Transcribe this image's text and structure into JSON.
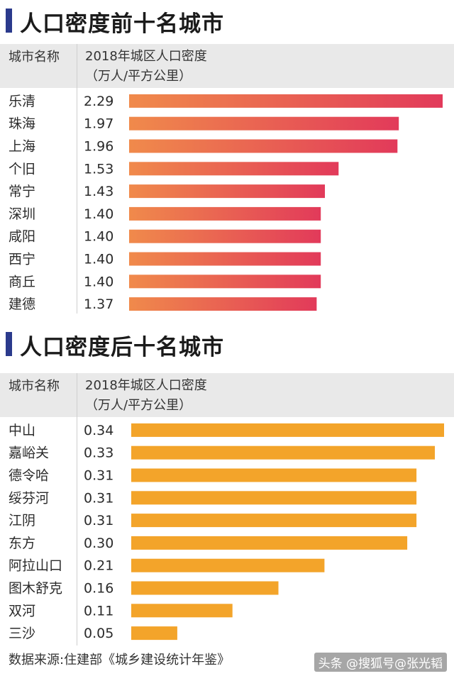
{
  "colors": {
    "title_marker": "#2b3a8c",
    "top_bar_start": "#f08a4b",
    "top_bar_end": "#e23a5a",
    "bottom_bar": "#f3a42a",
    "header_bg": "#e9e9e9"
  },
  "top": {
    "title": "人口密度前十名城市",
    "col_name": "城市名称",
    "col_value_line1": "2018年城区人口密度",
    "col_value_line2": "（万人/平方公里）"
  },
  "bottom": {
    "title": "人口密度后十名城市",
    "col_name": "城市名称",
    "col_value_line1": "2018年城区人口密度",
    "col_value_line2": "（万人/平方公里）"
  },
  "footer": {
    "source": "数据来源:住建部《城乡建设统计年鉴》",
    "credit": "头条 @搜狐号@张光韬"
  },
  "chart_data": [
    {
      "type": "bar",
      "title": "人口密度前十名城市",
      "ylabel": "2018年城区人口密度（万人/平方公里）",
      "categories": [
        "乐清",
        "珠海",
        "上海",
        "个旧",
        "常宁",
        "深圳",
        "咸阳",
        "西宁",
        "商丘",
        "建德"
      ],
      "values": [
        2.29,
        1.97,
        1.96,
        1.53,
        1.43,
        1.4,
        1.4,
        1.4,
        1.4,
        1.37
      ],
      "labels": [
        "2.29",
        "1.97",
        "1.96",
        "1.53",
        "1.43",
        "1.40",
        "1.40",
        "1.40",
        "1.40",
        "1.37"
      ],
      "orientation": "horizontal",
      "grid": false
    },
    {
      "type": "bar",
      "title": "人口密度后十名城市",
      "ylabel": "2018年城区人口密度（万人/平方公里）",
      "categories": [
        "中山",
        "嘉峪关",
        "德令哈",
        "绥芬河",
        "江阴",
        "东方",
        "阿拉山口",
        "图木舒克",
        "双河",
        "三沙"
      ],
      "values": [
        0.34,
        0.33,
        0.31,
        0.31,
        0.31,
        0.3,
        0.21,
        0.16,
        0.11,
        0.05
      ],
      "labels": [
        "0.34",
        "0.33",
        "0.31",
        "0.31",
        "0.31",
        "0.30",
        "0.21",
        "0.16",
        "0.11",
        "0.05"
      ],
      "orientation": "horizontal",
      "grid": false
    }
  ]
}
